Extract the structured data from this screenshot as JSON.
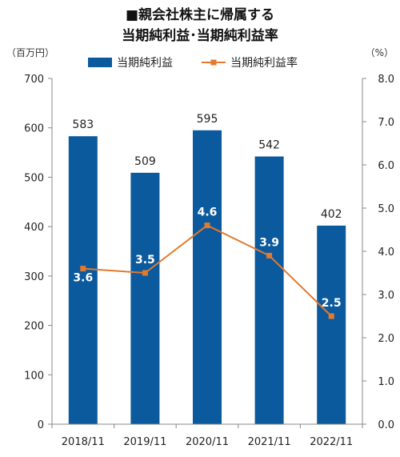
{
  "chart_data": {
    "type": "bar",
    "title_line1": "■親会社株主に帰属する",
    "title_line2": "当期純利益･当期純利益率",
    "left_unit": "（百万円）",
    "right_unit": "（%）",
    "categories": [
      "2018/11",
      "2019/11",
      "2020/11",
      "2021/11",
      "2022/11"
    ],
    "series": [
      {
        "name": "当期純利益",
        "type": "bar",
        "axis": "left",
        "color": "#0b5a9e",
        "values": [
          583,
          509,
          595,
          542,
          402
        ]
      },
      {
        "name": "当期純利益率",
        "type": "line",
        "axis": "right",
        "color": "#e27a2e",
        "values": [
          3.6,
          3.5,
          4.6,
          3.9,
          2.5
        ]
      }
    ],
    "left_axis": {
      "min": 0,
      "max": 700,
      "step": 100,
      "ticks": [
        "0",
        "100",
        "200",
        "300",
        "400",
        "500",
        "600",
        "700"
      ]
    },
    "right_axis": {
      "min": 0,
      "max": 8,
      "step": 1,
      "ticks": [
        "0.0",
        "1.0",
        "2.0",
        "3.0",
        "4.0",
        "5.0",
        "6.0",
        "7.0",
        "8.0"
      ]
    },
    "bar_labels": [
      "583",
      "509",
      "595",
      "542",
      "402"
    ],
    "rate_labels": [
      "3.6",
      "3.5",
      "4.6",
      "3.9",
      "2.5"
    ],
    "legend_position": "top",
    "grid": false
  }
}
